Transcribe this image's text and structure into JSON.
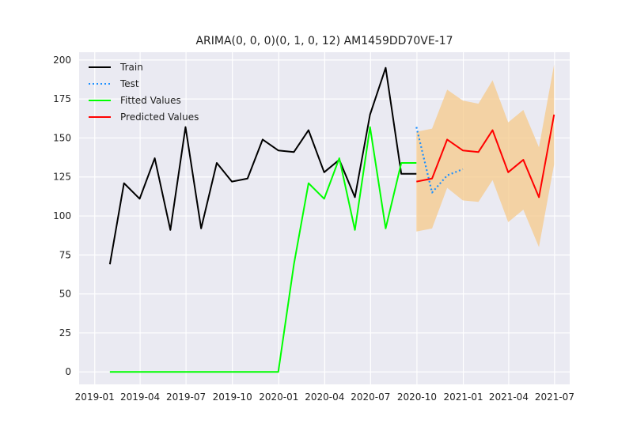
{
  "chart_data": {
    "type": "line",
    "title": "ARIMA(0, 0, 0)(0, 1, 0, 12) AM1459DD70VE-17",
    "xlabel": "",
    "ylabel": "",
    "x_range": [
      "2018-12-01",
      "2021-07-31"
    ],
    "ylim": [
      -8,
      205
    ],
    "x_ticks": [
      {
        "date": "2019-01-01",
        "label": "2019-01"
      },
      {
        "date": "2019-04-01",
        "label": "2019-04"
      },
      {
        "date": "2019-07-01",
        "label": "2019-07"
      },
      {
        "date": "2019-10-01",
        "label": "2019-10"
      },
      {
        "date": "2020-01-01",
        "label": "2020-01"
      },
      {
        "date": "2020-04-01",
        "label": "2020-04"
      },
      {
        "date": "2020-07-01",
        "label": "2020-07"
      },
      {
        "date": "2020-10-01",
        "label": "2020-10"
      },
      {
        "date": "2021-01-01",
        "label": "2021-01"
      },
      {
        "date": "2021-04-01",
        "label": "2021-04"
      },
      {
        "date": "2021-07-01",
        "label": "2021-07"
      }
    ],
    "y_ticks": [
      0,
      25,
      50,
      75,
      100,
      125,
      150,
      175,
      200
    ],
    "grid": true,
    "legend_position": "top-left",
    "legend": [
      {
        "name": "Train",
        "color": "#000000",
        "style": "solid"
      },
      {
        "name": "Test",
        "color": "#1e90ff",
        "style": "dotted"
      },
      {
        "name": "Fitted Values",
        "color": "#00ff00",
        "style": "solid"
      },
      {
        "name": "Predicted Values",
        "color": "#ff0000",
        "style": "solid"
      }
    ],
    "series": [
      {
        "name": "Train",
        "color": "#000000",
        "style": "solid",
        "x": [
          "2019-01-31",
          "2019-02-28",
          "2019-03-31",
          "2019-04-30",
          "2019-05-31",
          "2019-06-30",
          "2019-07-31",
          "2019-08-31",
          "2019-09-30",
          "2019-10-31",
          "2019-11-30",
          "2019-12-31",
          "2020-01-31",
          "2020-02-29",
          "2020-03-31",
          "2020-04-30",
          "2020-05-31",
          "2020-06-30",
          "2020-07-31",
          "2020-08-31",
          "2020-09-30"
        ],
        "y": [
          69,
          121,
          111,
          137,
          91,
          157,
          92,
          134,
          122,
          124,
          149,
          142,
          141,
          155,
          128,
          136,
          112,
          165,
          195,
          127,
          127
        ]
      },
      {
        "name": "Test",
        "color": "#1e90ff",
        "style": "dotted",
        "x": [
          "2020-09-30",
          "2020-10-31",
          "2020-11-30",
          "2020-12-31"
        ],
        "y": [
          157,
          115,
          126,
          130
        ]
      },
      {
        "name": "Fitted Values",
        "color": "#00ff00",
        "style": "solid",
        "x": [
          "2019-01-31",
          "2019-02-28",
          "2019-03-31",
          "2019-04-30",
          "2019-05-31",
          "2019-06-30",
          "2019-07-31",
          "2019-08-31",
          "2019-09-30",
          "2019-10-31",
          "2019-11-30",
          "2019-12-31",
          "2020-01-31",
          "2020-02-29",
          "2020-03-31",
          "2020-04-30",
          "2020-05-31",
          "2020-06-30",
          "2020-07-31",
          "2020-08-31",
          "2020-09-30"
        ],
        "y": [
          0,
          0,
          0,
          0,
          0,
          0,
          0,
          0,
          0,
          0,
          0,
          0,
          69,
          121,
          111,
          137,
          91,
          157,
          92,
          134,
          134
        ]
      },
      {
        "name": "Predicted Values",
        "color": "#ff0000",
        "style": "solid",
        "x": [
          "2020-09-30",
          "2020-10-31",
          "2020-11-30",
          "2020-12-31",
          "2021-01-31",
          "2021-02-28",
          "2021-03-31",
          "2021-04-30",
          "2021-05-31",
          "2021-06-30"
        ],
        "y": [
          122,
          124,
          149,
          142,
          141,
          155,
          128,
          136,
          112,
          165
        ]
      }
    ],
    "confidence_band": {
      "color": "#f5c98a",
      "x": [
        "2020-09-30",
        "2020-10-31",
        "2020-11-30",
        "2020-12-31",
        "2021-01-31",
        "2021-02-28",
        "2021-03-31",
        "2021-04-30",
        "2021-05-31",
        "2021-06-30"
      ],
      "lower": [
        90,
        92,
        118,
        110,
        109,
        123,
        96,
        104,
        80,
        133
      ],
      "upper": [
        154,
        156,
        181,
        174,
        172,
        187,
        160,
        168,
        144,
        197
      ]
    }
  }
}
